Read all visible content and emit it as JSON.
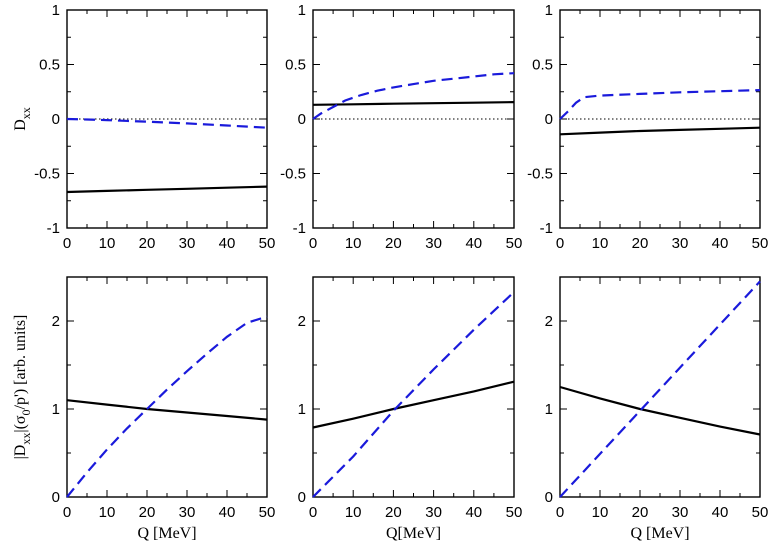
{
  "chart_data": [
    {
      "type": "line",
      "panel": "top-left",
      "ylabel_main": "D",
      "ylabel_sub": "xx",
      "xlabel": "",
      "xlim": [
        0,
        50
      ],
      "ylim": [
        -1,
        1
      ],
      "xticks": [
        "0",
        "10",
        "20",
        "30",
        "40",
        "50"
      ],
      "yticks": [
        "-1",
        "-0.5",
        "0",
        "0.5",
        "1"
      ],
      "reference_line": 0,
      "series": [
        {
          "style": "solid",
          "color": "#000000",
          "x": [
            0,
            10,
            20,
            30,
            40,
            50
          ],
          "y": [
            -0.67,
            -0.66,
            -0.65,
            -0.64,
            -0.63,
            -0.62
          ]
        },
        {
          "style": "dashed",
          "color": "#1a1adb",
          "x": [
            0,
            5,
            10,
            20,
            30,
            40,
            50
          ],
          "y": [
            0.0,
            -0.005,
            -0.01,
            -0.025,
            -0.04,
            -0.06,
            -0.08
          ]
        }
      ]
    },
    {
      "type": "line",
      "panel": "top-middle",
      "ylabel_main": "",
      "ylabel_sub": "",
      "xlabel": "",
      "xlim": [
        0,
        50
      ],
      "ylim": [
        -1,
        1
      ],
      "xticks": [
        "0",
        "10",
        "20",
        "30",
        "40",
        "50"
      ],
      "yticks": [
        "-1",
        "-0.5",
        "0",
        "0.5",
        "1"
      ],
      "reference_line": 0,
      "series": [
        {
          "style": "solid",
          "color": "#000000",
          "x": [
            0,
            10,
            20,
            30,
            40,
            50
          ],
          "y": [
            0.13,
            0.135,
            0.14,
            0.145,
            0.15,
            0.155
          ]
        },
        {
          "style": "dashed",
          "color": "#1a1adb",
          "x": [
            0,
            2,
            5,
            8,
            12,
            16,
            20,
            25,
            30,
            35,
            40,
            45,
            50
          ],
          "y": [
            0.0,
            0.05,
            0.11,
            0.17,
            0.22,
            0.26,
            0.29,
            0.32,
            0.35,
            0.37,
            0.39,
            0.41,
            0.42
          ]
        }
      ]
    },
    {
      "type": "line",
      "panel": "top-right",
      "ylabel_main": "",
      "ylabel_sub": "",
      "xlabel": "",
      "xlim": [
        0,
        50
      ],
      "ylim": [
        -1,
        1
      ],
      "xticks": [
        "0",
        "10",
        "20",
        "30",
        "40",
        "50"
      ],
      "yticks": [
        "-1",
        "-0.5",
        "0",
        "0.5",
        "1"
      ],
      "reference_line": 0,
      "series": [
        {
          "style": "solid",
          "color": "#000000",
          "x": [
            0,
            10,
            20,
            30,
            40,
            50
          ],
          "y": [
            -0.14,
            -0.125,
            -0.11,
            -0.1,
            -0.09,
            -0.08
          ]
        },
        {
          "style": "dashed",
          "color": "#1a1adb",
          "x": [
            0,
            2,
            4,
            6,
            10,
            20,
            30,
            40,
            50
          ],
          "y": [
            0.0,
            0.07,
            0.15,
            0.2,
            0.215,
            0.23,
            0.245,
            0.255,
            0.265
          ]
        }
      ]
    },
    {
      "type": "line",
      "panel": "bottom-left",
      "ylabel_main": "|D",
      "ylabel_sub": "xx",
      "ylabel_mid": "|(σ",
      "ylabel_sub2": "0",
      "ylabel_tail": "/p') [arb. units]",
      "xlabel": "Q [MeV]",
      "xlim": [
        0,
        50
      ],
      "ylim": [
        0,
        2.5
      ],
      "xticks": [
        "0",
        "10",
        "20",
        "30",
        "40",
        "50"
      ],
      "yticks": [
        "0",
        "1",
        "2"
      ],
      "series": [
        {
          "style": "solid",
          "color": "#000000",
          "x": [
            0,
            10,
            20,
            30,
            40,
            50
          ],
          "y": [
            1.1,
            1.05,
            1.0,
            0.96,
            0.92,
            0.88
          ]
        },
        {
          "style": "dashed",
          "color": "#1a1adb",
          "x": [
            0,
            5,
            10,
            15,
            20,
            25,
            30,
            35,
            40,
            45,
            50
          ],
          "y": [
            0.0,
            0.28,
            0.54,
            0.78,
            1.0,
            1.22,
            1.43,
            1.63,
            1.82,
            1.98,
            2.05
          ]
        }
      ]
    },
    {
      "type": "line",
      "panel": "bottom-middle",
      "ylabel_main": "",
      "xlabel": "Q[MeV]",
      "xlim": [
        0,
        50
      ],
      "ylim": [
        0,
        2.5
      ],
      "xticks": [
        "0",
        "10",
        "20",
        "30",
        "40",
        "50"
      ],
      "yticks": [
        "0",
        "1",
        "2"
      ],
      "series": [
        {
          "style": "solid",
          "color": "#000000",
          "x": [
            0,
            10,
            20,
            30,
            40,
            50
          ],
          "y": [
            0.79,
            0.89,
            1.0,
            1.1,
            1.2,
            1.31
          ]
        },
        {
          "style": "dashed",
          "color": "#1a1adb",
          "x": [
            0,
            10,
            20,
            30,
            40,
            50
          ],
          "y": [
            0.0,
            0.46,
            0.98,
            1.45,
            1.9,
            2.33
          ]
        }
      ]
    },
    {
      "type": "line",
      "panel": "bottom-right",
      "ylabel_main": "",
      "xlabel": "Q [MeV]",
      "xlim": [
        0,
        50
      ],
      "ylim": [
        0,
        2.5
      ],
      "xticks": [
        "0",
        "10",
        "20",
        "30",
        "40",
        "50"
      ],
      "yticks": [
        "0",
        "1",
        "2"
      ],
      "series": [
        {
          "style": "solid",
          "color": "#000000",
          "x": [
            0,
            10,
            20,
            30,
            40,
            50
          ],
          "y": [
            1.25,
            1.12,
            1.0,
            0.9,
            0.8,
            0.71
          ]
        },
        {
          "style": "dashed",
          "color": "#1a1adb",
          "x": [
            0,
            10,
            20,
            30,
            40,
            50
          ],
          "y": [
            0.0,
            0.49,
            0.98,
            1.47,
            1.96,
            2.45
          ]
        }
      ]
    }
  ]
}
